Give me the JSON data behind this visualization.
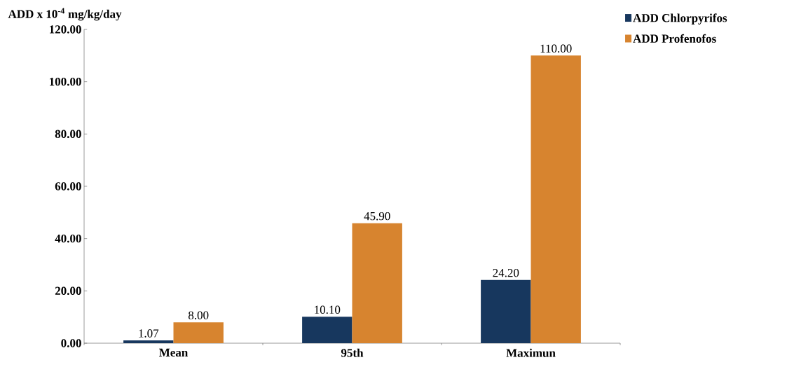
{
  "chart_data": {
    "type": "bar",
    "ylabel": "ADD x 10$^{-4}$ mg/kg/day",
    "categories": [
      "Mean",
      "95th",
      "Maximun"
    ],
    "series": [
      {
        "name": "ADD Chlorpyrifos",
        "color": "#17375e",
        "values": [
          1.07,
          10.1,
          24.2
        ],
        "value_labels": [
          "1.07",
          "10.10",
          "24.20"
        ]
      },
      {
        "name": "ADD Profenofos",
        "color": "#d7842f",
        "values": [
          8.0,
          45.9,
          110.0
        ],
        "value_labels": [
          "8.00",
          "45.90",
          "110.00"
        ]
      }
    ],
    "ylim": [
      0,
      120
    ],
    "yticks": [
      {
        "value": 0,
        "label": "0.00"
      },
      {
        "value": 20,
        "label": "20.00"
      },
      {
        "value": 40,
        "label": "40.00"
      },
      {
        "value": 60,
        "label": "60.00"
      },
      {
        "value": 80,
        "label": "80.00"
      },
      {
        "value": 100,
        "label": "100.00"
      },
      {
        "value": 120,
        "label": "120.00"
      }
    ],
    "legend": "top right",
    "grid": false
  }
}
